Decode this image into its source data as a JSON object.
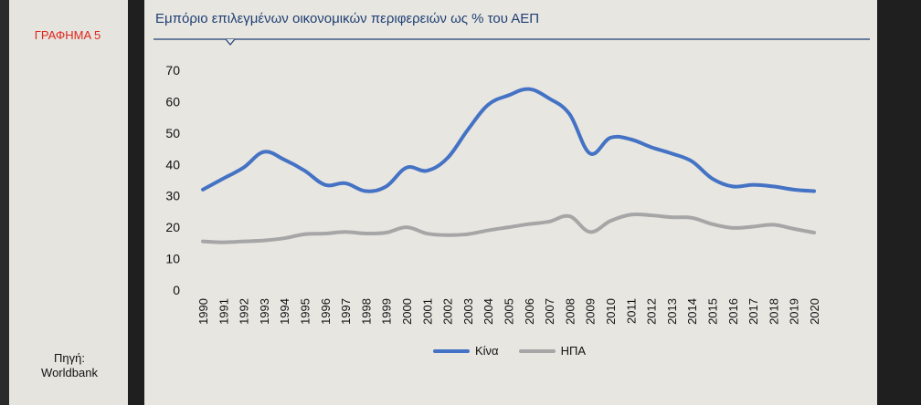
{
  "sidebar": {
    "chart_label": "ΓΡΑΦΗΜΑ 5",
    "source_label": "Πηγή:",
    "source_name": "Worldbank"
  },
  "colors": {
    "china": "#4472c4",
    "usa": "#a6a6a6",
    "title": "#1f3f74",
    "label_red": "#e0261b"
  },
  "chart_data": {
    "type": "line",
    "title": "Εμπόριο επιλεγμένων οικονομικών περιφερειών ως % του ΑΕΠ",
    "xlabel": "",
    "ylabel": "",
    "ylim": [
      0,
      70
    ],
    "yticks": [
      "0",
      "10",
      "20",
      "30",
      "40",
      "50",
      "60",
      "70"
    ],
    "x": [
      "1990",
      "1991",
      "1992",
      "1993",
      "1994",
      "1995",
      "1996",
      "1997",
      "1998",
      "1999",
      "2000",
      "2001",
      "2002",
      "2003",
      "2004",
      "2005",
      "2006",
      "2007",
      "2008",
      "2009",
      "2010",
      "2011",
      "2012",
      "2013",
      "2014",
      "2015",
      "2016",
      "2017",
      "2018",
      "2019",
      "2020"
    ],
    "series": [
      {
        "name": "Κίνα",
        "values": [
          32,
          35.5,
          39,
          44,
          41.5,
          38,
          33.5,
          34,
          31.5,
          33,
          39,
          38,
          42,
          51,
          59,
          62,
          64,
          61,
          56,
          43.5,
          48.5,
          48,
          45.5,
          43.5,
          41,
          35.5,
          33,
          33.5,
          33,
          32,
          31.5
        ]
      },
      {
        "name": "ΗΠΑ",
        "values": [
          15.5,
          15.2,
          15.5,
          15.8,
          16.5,
          17.8,
          18,
          18.5,
          18,
          18.3,
          20,
          18,
          17.5,
          17.8,
          19,
          20,
          21,
          21.8,
          23.5,
          18.5,
          22,
          24,
          23.8,
          23.2,
          23,
          21,
          19.8,
          20.2,
          20.8,
          19.5,
          18.3
        ]
      }
    ],
    "legend_position": "bottom"
  }
}
